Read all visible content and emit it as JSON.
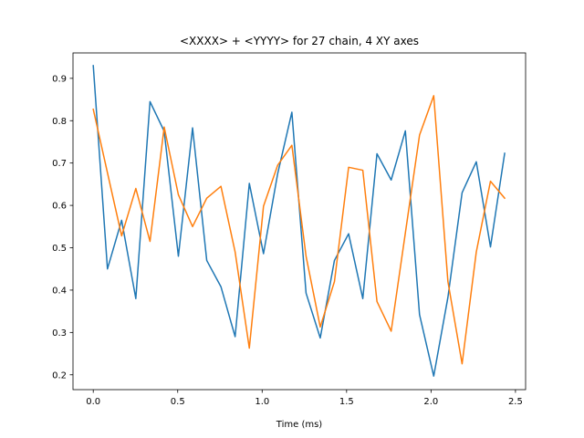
{
  "chart_data": {
    "type": "line",
    "title": "<XXXX> + <YYYY> for 27 chain, 4 XY axes",
    "xlabel": "Time (ms)",
    "ylabel": "",
    "xlim": [
      -0.12,
      2.56
    ],
    "ylim": [
      0.165,
      0.96
    ],
    "xticks": [
      0.0,
      0.5,
      1.0,
      1.5,
      2.0,
      2.5
    ],
    "xtick_labels": [
      "0.0",
      "0.5",
      "1.0",
      "1.5",
      "2.0",
      "2.5"
    ],
    "yticks": [
      0.2,
      0.3,
      0.4,
      0.5,
      0.6,
      0.7,
      0.8,
      0.9
    ],
    "ytick_labels": [
      "0.2",
      "0.3",
      "0.4",
      "0.5",
      "0.6",
      "0.7",
      "0.8",
      "0.9"
    ],
    "grid": false,
    "x": [
      0.0,
      0.084,
      0.168,
      0.252,
      0.336,
      0.42,
      0.504,
      0.588,
      0.672,
      0.756,
      0.84,
      0.924,
      1.008,
      1.092,
      1.176,
      1.26,
      1.344,
      1.428,
      1.512,
      1.596,
      1.68,
      1.764,
      1.848,
      1.932,
      2.016,
      2.1,
      2.184,
      2.268,
      2.352,
      2.436
    ],
    "series": [
      {
        "color": "#1f77b4",
        "values": [
          0.93,
          0.45,
          0.565,
          0.38,
          0.845,
          0.775,
          0.48,
          0.783,
          0.47,
          0.408,
          0.29,
          0.652,
          0.486,
          0.675,
          0.82,
          0.393,
          0.287,
          0.47,
          0.533,
          0.38,
          0.722,
          0.66,
          0.776,
          0.342,
          0.197,
          0.383,
          0.63,
          0.703,
          0.502,
          0.723
        ]
      },
      {
        "color": "#ff7f0e",
        "values": [
          0.827,
          0.677,
          0.528,
          0.64,
          0.515,
          0.785,
          0.625,
          0.55,
          0.617,
          0.645,
          0.49,
          0.263,
          0.598,
          0.695,
          0.742,
          0.48,
          0.313,
          0.42,
          0.69,
          0.683,
          0.373,
          0.303,
          0.535,
          0.766,
          0.859,
          0.42,
          0.226,
          0.49,
          0.657,
          0.617
        ]
      }
    ]
  }
}
